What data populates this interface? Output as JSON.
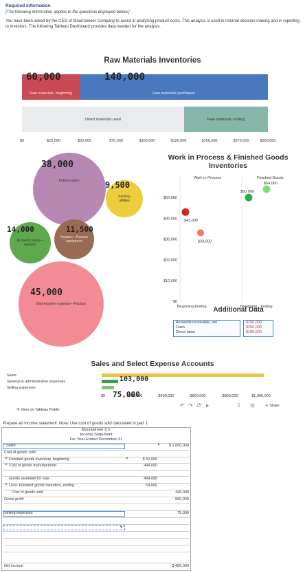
{
  "header": {
    "required": "Required information",
    "applies": "[The following information applies to the questions displayed below.]",
    "intro": "You have been asked by the CEO of Mountaineer Company to assist in analyzing product costs. This analysis is used in internal decision making and in reporting to investors. The following Tableau Dashboard provides data needed for the analysis."
  },
  "raw_materials": {
    "title": "Raw Materials Inventories",
    "segments": {
      "beginning": "Raw materials, beginning",
      "purchases": "Raw materials purchases",
      "used": "Direct materials used",
      "ending": "Raw materials, ending"
    },
    "axis_ticks": [
      "$0",
      "$25,000",
      "$50,000",
      "$75,000",
      "$100,000",
      "$125,000",
      "$150,000",
      "$175,000",
      "$200,000"
    ],
    "handwritten": {
      "beginning": "60,000",
      "purchases": "140,000"
    },
    "colors": {
      "beginning": "#c94a55",
      "purchases": "#4a78bf",
      "used": "#e9eaec",
      "ending": "#86b6a7"
    }
  },
  "overhead": {
    "bubbles": {
      "indirect_labor": "Indirect labor",
      "utilities": "Factory utilities",
      "property_taxes": "Property taxes—Factory",
      "repairs": "Repairs—Factory equipment",
      "depreciation": "Depreciation expense—Factory"
    },
    "handwritten": {
      "indirect_labor": "38,000",
      "utilities": "9,500",
      "property_taxes": "14,000",
      "repairs": "11,500",
      "depreciation": "45,000"
    }
  },
  "wip": {
    "title": "Work in Process & Finished Goods Inventories",
    "col_headers": [
      "Work in Process",
      "Finished Goods"
    ],
    "x_labels": [
      "Beginning",
      "Ending",
      "Beginning",
      "Ending"
    ],
    "y_ticks": [
      "$50,000",
      "$40,000",
      "$30,000",
      "$20,000",
      "$10,000",
      "$0"
    ],
    "point_labels": [
      "$43,000",
      "$33,000",
      "$50,000",
      "$54,000"
    ]
  },
  "chart_data": {
    "type": "scatter",
    "title": "Work in Process & Finished Goods Inventories",
    "categories": [
      "Work in Process — Beginning",
      "Work in Process — Ending",
      "Finished Goods — Beginning",
      "Finished Goods — Ending"
    ],
    "values": [
      43000,
      33000,
      50000,
      54000
    ],
    "ylim": [
      0,
      55000
    ],
    "colors": [
      "#d92020",
      "#f07b55",
      "#2eaa4a",
      "#86d97a"
    ]
  },
  "additional": {
    "title": "Additional Data",
    "rows": [
      {
        "label": "Accounts receivable, net",
        "value": "$150,000"
      },
      {
        "label": "Cash",
        "value": "$250,000"
      },
      {
        "label": "Direct labor",
        "value": "$180,000"
      }
    ]
  },
  "sales": {
    "title": "Sales and Select Expense Accounts",
    "labels": [
      "Sales",
      "General & administrative expenses",
      "Selling expenses"
    ],
    "axis_ticks": [
      "$0",
      "$200,000",
      "$400,000",
      "$600,000",
      "$800,000",
      "$1,000,000"
    ],
    "handwritten": {
      "ga": "103,000",
      "selling": "75,000"
    }
  },
  "footer": {
    "tableau": "View on Tableau Public",
    "share": "Share"
  },
  "statement": {
    "prompt": "Prepare an income statement. Note: Use cost of goods sold calculated in part 1.",
    "company": "Mountaineer Co.",
    "name": "Income Statement",
    "period": "For Year Ended December 31",
    "sales_label": "Sales",
    "sales_value": "$ 1,000,000",
    "cogs_label": "Cost of goods sold:",
    "fg_begin_label": "Finished goods inventory, beginning",
    "fg_begin_value": "$     50,000",
    "cogm_label": "Cost of goods manufactured",
    "cogm_value": "444,000",
    "available_label": "Goods available for sale",
    "available_value": "494,000",
    "less_fg_end_label": "Less: Finished goods inventory, ending",
    "less_fg_end_value": "54,000",
    "cogs_total_label": "Cost of goods sold",
    "cogs_total_value": "440,000",
    "gross_label": "Gross profit",
    "gross_value": "560,000",
    "selling_label": "Selling expenses",
    "selling_value": "75,000",
    "net_label": "Net income",
    "net_value": "$    485,000"
  }
}
